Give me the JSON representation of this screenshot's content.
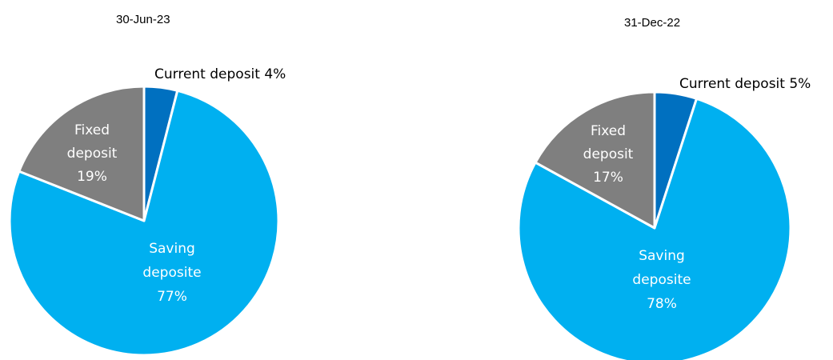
{
  "colors": {
    "current": "#0070c0",
    "saving": "#00b0f0",
    "fixed": "#7f7f7f"
  },
  "chart_data": [
    {
      "type": "pie",
      "title": "30-Jun-23",
      "slices": [
        {
          "name": "Current deposit",
          "value": 4,
          "label_lines": [
            "Current deposit 4%"
          ],
          "color_key": "current",
          "label_color": "#000000"
        },
        {
          "name": "Saving deposite",
          "value": 77,
          "label_lines": [
            "Saving",
            "deposite",
            "77%"
          ],
          "color_key": "saving",
          "label_color": "#ffffff"
        },
        {
          "name": "Fixed deposit",
          "value": 19,
          "label_lines": [
            "Fixed",
            "deposit",
            "19%"
          ],
          "color_key": "fixed",
          "label_color": "#ffffff"
        }
      ]
    },
    {
      "type": "pie",
      "title": "31-Dec-22",
      "slices": [
        {
          "name": "Current deposit",
          "value": 5,
          "label_lines": [
            "Current deposit 5%"
          ],
          "color_key": "current",
          "label_color": "#000000"
        },
        {
          "name": "Saving deposite",
          "value": 78,
          "label_lines": [
            "Saving",
            "deposite",
            "78%"
          ],
          "color_key": "saving",
          "label_color": "#ffffff"
        },
        {
          "name": "Fixed deposit",
          "value": 17,
          "label_lines": [
            "Fixed",
            "deposit",
            "17%"
          ],
          "color_key": "fixed",
          "label_color": "#ffffff"
        }
      ]
    }
  ]
}
